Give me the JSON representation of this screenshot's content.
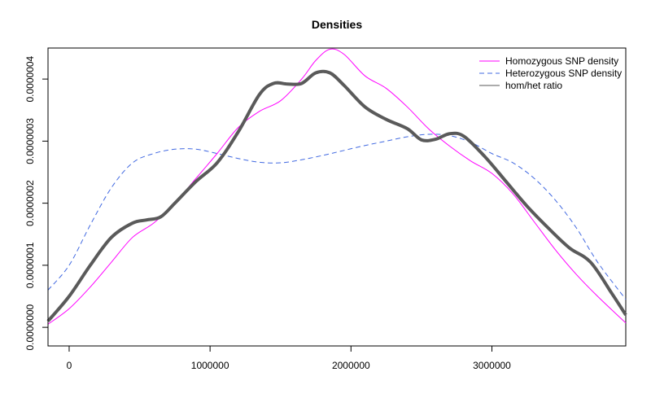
{
  "chart_data": {
    "type": "line",
    "title": "Densities",
    "xlabel": "",
    "ylabel": "",
    "xlim": [
      -150000,
      3950000
    ],
    "ylim": [
      -3e-08,
      4.5e-07
    ],
    "x_ticks": [
      0,
      1000000,
      2000000,
      3000000
    ],
    "x_tick_labels": [
      "0",
      "1000000",
      "2000000",
      "3000000"
    ],
    "y_ticks": [
      0,
      1e-07,
      2e-07,
      3e-07,
      4e-07
    ],
    "y_tick_labels": [
      "0.0000000",
      "0.0000001",
      "0.0000002",
      "0.0000003",
      "0.0000004"
    ],
    "legend_position": "top-right",
    "grid": false,
    "series": [
      {
        "name": "Homozygous SNP density",
        "color": "#ff00ff",
        "style": "solid",
        "width": "thin",
        "x": [
          -150000,
          0,
          150000,
          300000,
          450000,
          600000,
          750000,
          900000,
          1050000,
          1200000,
          1350000,
          1500000,
          1650000,
          1750000,
          1850000,
          1950000,
          2100000,
          2250000,
          2400000,
          2550000,
          2700000,
          2850000,
          3000000,
          3150000,
          3300000,
          3450000,
          3600000,
          3750000,
          3950000
        ],
        "y": [
          5e-09,
          3e-08,
          6.5e-08,
          1.05e-07,
          1.45e-07,
          1.68e-07,
          2e-07,
          2.4e-07,
          2.8e-07,
          3.22e-07,
          3.48e-07,
          3.65e-07,
          4e-07,
          4.3e-07,
          4.48e-07,
          4.4e-07,
          4.05e-07,
          3.85e-07,
          3.55e-07,
          3.2e-07,
          2.92e-07,
          2.68e-07,
          2.48e-07,
          2.15e-07,
          1.7e-07,
          1.25e-07,
          8.5e-08,
          5e-08,
          7e-09
        ]
      },
      {
        "name": "Heterozygous SNP density",
        "color": "#4169e1",
        "style": "dashed",
        "width": "thin",
        "x": [
          -150000,
          0,
          150000,
          300000,
          450000,
          600000,
          750000,
          900000,
          1050000,
          1200000,
          1350000,
          1500000,
          1650000,
          1800000,
          1950000,
          2100000,
          2250000,
          2400000,
          2550000,
          2700000,
          2850000,
          3000000,
          3150000,
          3300000,
          3450000,
          3600000,
          3750000,
          3950000
        ],
        "y": [
          6e-08,
          1e-07,
          1.65e-07,
          2.25e-07,
          2.65e-07,
          2.8e-07,
          2.87e-07,
          2.87e-07,
          2.8e-07,
          2.72e-07,
          2.66e-07,
          2.65e-07,
          2.7e-07,
          2.77e-07,
          2.85e-07,
          2.93e-07,
          3e-07,
          3.07e-07,
          3.11e-07,
          3.09e-07,
          2.98e-07,
          2.8e-07,
          2.65e-07,
          2.4e-07,
          2.05e-07,
          1.6e-07,
          1.05e-07,
          4.5e-08
        ]
      },
      {
        "name": "hom/het ratio",
        "color": "#5a5a5a",
        "style": "solid",
        "width": "thick",
        "x": [
          -150000,
          0,
          150000,
          300000,
          450000,
          550000,
          650000,
          750000,
          900000,
          1050000,
          1200000,
          1350000,
          1450000,
          1550000,
          1650000,
          1750000,
          1850000,
          1950000,
          2100000,
          2250000,
          2400000,
          2500000,
          2600000,
          2700000,
          2800000,
          2950000,
          3100000,
          3250000,
          3400000,
          3550000,
          3700000,
          3850000,
          3950000
        ],
        "y": [
          1e-08,
          5e-08,
          1e-07,
          1.45e-07,
          1.68e-07,
          1.73e-07,
          1.78e-07,
          2e-07,
          2.35e-07,
          2.65e-07,
          3.15e-07,
          3.75e-07,
          3.93e-07,
          3.92e-07,
          3.93e-07,
          4.1e-07,
          4.1e-07,
          3.9e-07,
          3.55e-07,
          3.35e-07,
          3.2e-07,
          3.02e-07,
          3.03e-07,
          3.12e-07,
          3.08e-07,
          2.75e-07,
          2.35e-07,
          1.95e-07,
          1.6e-07,
          1.28e-07,
          1.05e-07,
          5.5e-08,
          2e-08
        ]
      }
    ]
  }
}
